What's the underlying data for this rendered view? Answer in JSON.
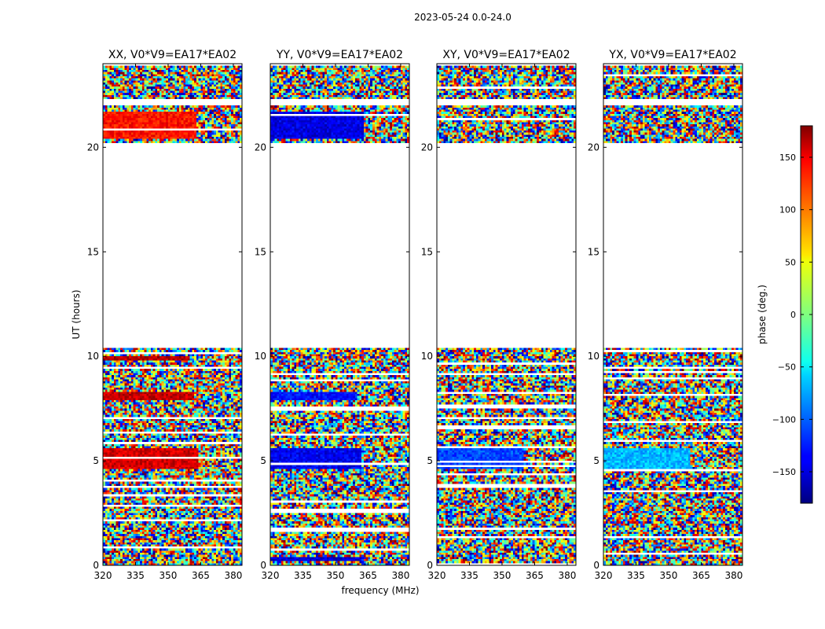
{
  "suptitle": "2023-05-24 0.0-24.0",
  "chart_data": {
    "type": "heatmap",
    "colormap": "jet",
    "panels": [
      {
        "title": "XX, V0*V9=EA17*EA02",
        "pol": "XX"
      },
      {
        "title": "YY, V0*V9=EA17*EA02",
        "pol": "YY"
      },
      {
        "title": "XY, V0*V9=EA17*EA02",
        "pol": "XY"
      },
      {
        "title": "YX, V0*V9=EA17*EA02",
        "pol": "YX"
      }
    ],
    "xlabel": "frequency (MHz)",
    "ylabel": "UT (hours)",
    "xlim": [
      320,
      384
    ],
    "ylim": [
      0,
      24
    ],
    "xticks": [
      320,
      335,
      350,
      365,
      380
    ],
    "yticks": [
      0,
      5,
      10,
      15,
      20
    ],
    "colorbar": {
      "label": "phase (deg.)",
      "range": [
        -180,
        180
      ],
      "ticks": [
        150,
        100,
        50,
        0,
        -50,
        -100,
        -150
      ],
      "tick_labels": [
        "150",
        "100",
        "50",
        "0",
        "−50",
        "−100",
        "−150"
      ]
    },
    "data_gaps_ut": [
      [
        10.4,
        20.2
      ],
      [
        22.0,
        22.3
      ],
      [
        23.9,
        24.0
      ]
    ],
    "coherent_blocks": [
      {
        "pol": "XX",
        "ut": [
          4.6,
          5.6
        ],
        "freq": [
          320,
          364
        ],
        "phase_deg": 150
      },
      {
        "pol": "XX",
        "ut": [
          7.9,
          8.3
        ],
        "freq": [
          320,
          362
        ],
        "phase_deg": 155
      },
      {
        "pol": "XX",
        "ut": [
          9.8,
          10.0
        ],
        "freq": [
          320,
          360
        ],
        "phase_deg": 160
      },
      {
        "pol": "XX",
        "ut": [
          20.4,
          21.7
        ],
        "freq": [
          320,
          363
        ],
        "phase_deg": 130
      },
      {
        "pol": "YY",
        "ut": [
          4.6,
          5.6
        ],
        "freq": [
          320,
          362
        ],
        "phase_deg": -140
      },
      {
        "pol": "YY",
        "ut": [
          7.9,
          8.3
        ],
        "freq": [
          320,
          360
        ],
        "phase_deg": -130
      },
      {
        "pol": "YY",
        "ut": [
          20.4,
          21.7
        ],
        "freq": [
          320,
          363
        ],
        "phase_deg": -145
      },
      {
        "pol": "YY",
        "ut": [
          0.2,
          0.4
        ],
        "freq": [
          320,
          362
        ],
        "phase_deg": -150
      },
      {
        "pol": "XY",
        "ut": [
          4.6,
          5.6
        ],
        "freq": [
          320,
          360
        ],
        "phase_deg": -110
      },
      {
        "pol": "YX",
        "ut": [
          4.6,
          5.6
        ],
        "freq": [
          320,
          360
        ],
        "phase_deg": -70
      }
    ]
  }
}
